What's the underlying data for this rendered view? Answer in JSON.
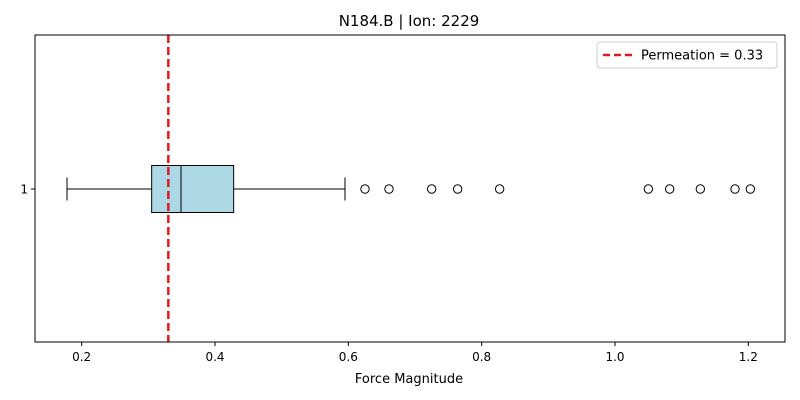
{
  "chart_data": {
    "type": "boxplot",
    "orientation": "horizontal",
    "title": "N184.B | Ion: 2229",
    "xlabel": "Force Magnitude",
    "ylabel": "",
    "xlim": [
      0.13,
      1.255
    ],
    "x_ticks": [
      0.2,
      0.4,
      0.6,
      0.8,
      1.0,
      1.2
    ],
    "x_tick_labels": [
      "0.2",
      "0.4",
      "0.6",
      "0.8",
      "1.0",
      "1.2"
    ],
    "y_tick_labels": [
      "1"
    ],
    "grid": false,
    "box": {
      "label": "1",
      "whisker_low": 0.178,
      "q1": 0.305,
      "median": 0.349,
      "q3": 0.428,
      "whisker_high": 0.595,
      "outliers": [
        0.625,
        0.661,
        0.725,
        0.764,
        0.827,
        1.05,
        1.082,
        1.128,
        1.18,
        1.203
      ],
      "fill_color": "#add8e6"
    },
    "reference_line": {
      "value": 0.33,
      "color": "#e31a1c",
      "style": "dashed"
    },
    "legend": {
      "position": "top-right",
      "entries": [
        "Permeation = 0.33"
      ]
    }
  }
}
